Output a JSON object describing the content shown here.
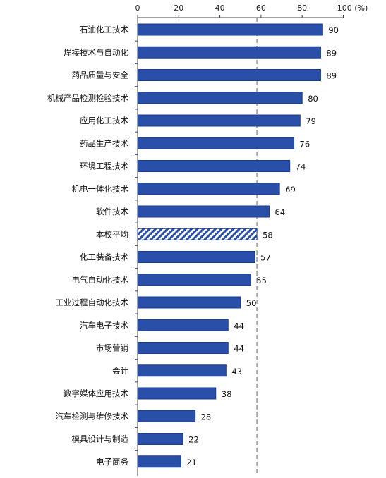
{
  "chart_data": {
    "type": "bar",
    "orientation": "horizontal",
    "axis_position": "top",
    "unit_label": "(%)",
    "xlim": [
      0,
      100
    ],
    "ticks": [
      0,
      20,
      40,
      60,
      80,
      100
    ],
    "reference_line": {
      "value": 58,
      "style": "dashed"
    },
    "grid": false,
    "legend": "none",
    "colors": {
      "bar": "#2a4fa8",
      "bar_stroke": "#1f3c87",
      "highlight_hatch": "#2a4fa8",
      "reference": "#8a8a8a"
    },
    "highlight_category": "本校平均",
    "categories": [
      "石油化工技术",
      "焊接技术与自动化",
      "药品质量与安全",
      "机械产品检测检验技术",
      "应用化工技术",
      "药品生产技术",
      "环境工程技术",
      "机电一体化技术",
      "软件技术",
      "本校平均",
      "化工装备技术",
      "电气自动化技术",
      "工业过程自动化技术",
      "汽车电子技术",
      "市场营销",
      "会计",
      "数字媒体应用技术",
      "汽车检测与维修技术",
      "模具设计与制造",
      "电子商务"
    ],
    "values": [
      90,
      89,
      89,
      80,
      79,
      76,
      74,
      69,
      64,
      58,
      57,
      55,
      50,
      44,
      44,
      43,
      38,
      28,
      22,
      21
    ]
  }
}
